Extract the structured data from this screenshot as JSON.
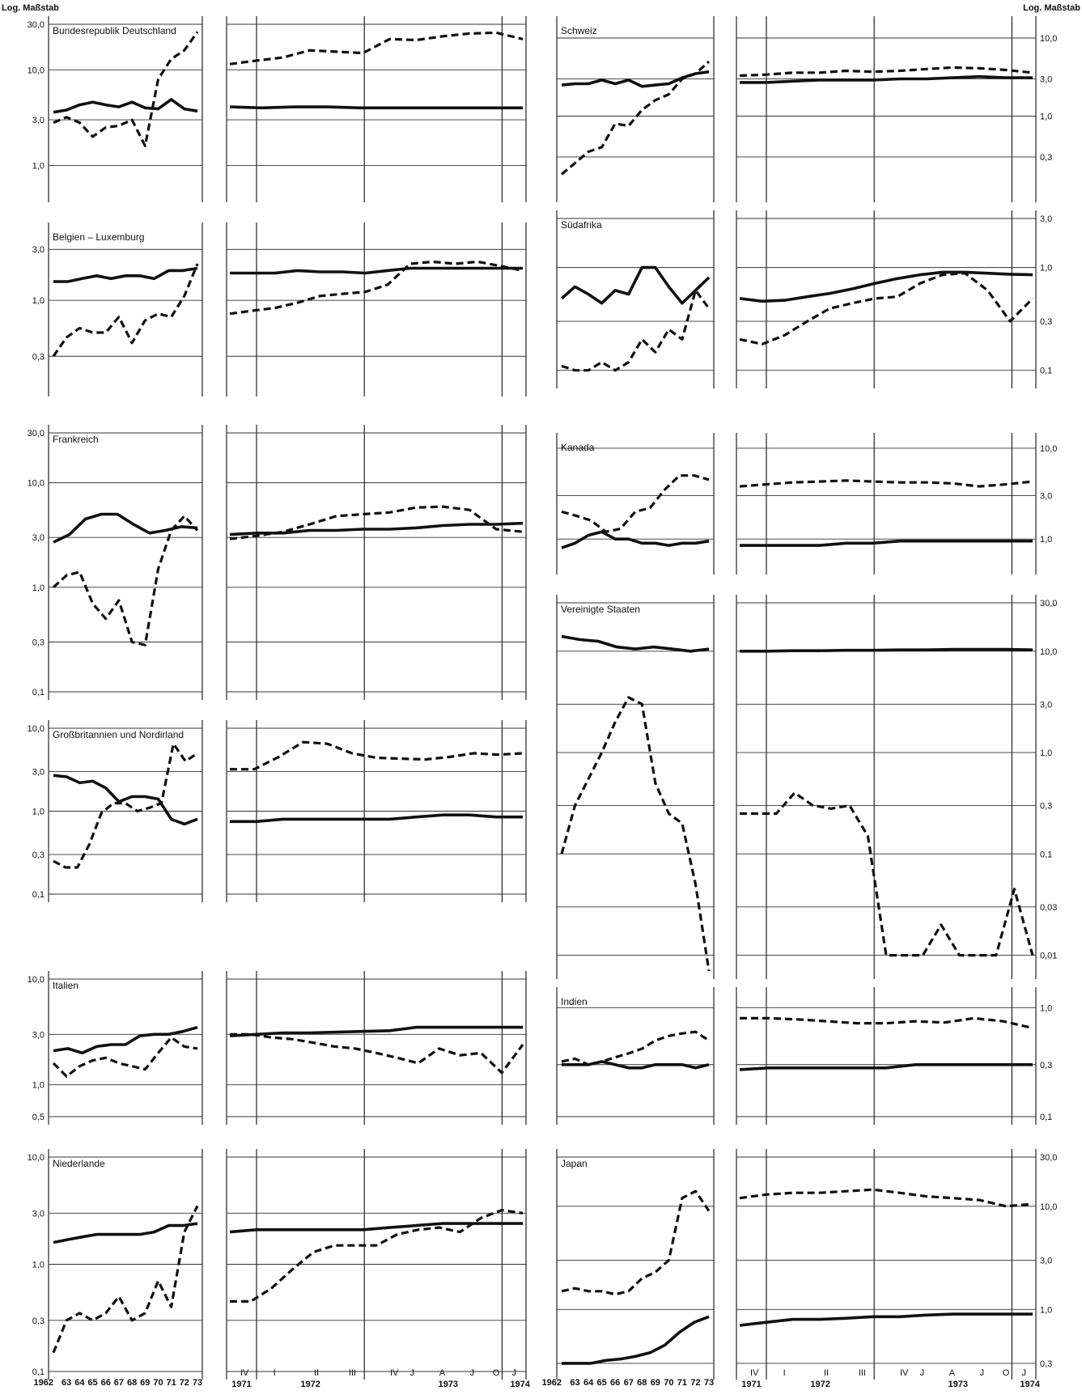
{
  "scale_label": "Log. Maßstab",
  "chart_data": [
    {
      "type": "line",
      "title": "Bundesrepublik Deutschland",
      "ticks": [
        "30,0",
        "10,0",
        "3,0",
        "1,0"
      ],
      "tick_values": [
        30,
        10,
        3,
        1
      ],
      "ylim": [
        0.5,
        30
      ],
      "annual": {
        "solid": [
          3.6,
          3.8,
          4.3,
          4.6,
          4.3,
          4.1,
          4.6,
          4.0,
          3.9,
          4.9,
          3.9,
          3.7
        ],
        "dashed": [
          2.8,
          3.2,
          2.8,
          2.0,
          2.5,
          2.6,
          3.0,
          1.6,
          8.0,
          13.0,
          16.0,
          25.0
        ]
      },
      "monthly": {
        "solid": [
          4.1,
          4.0,
          4.1,
          4.1,
          4.0,
          4.0,
          4.0,
          4.0,
          4.0,
          4.0
        ],
        "dashed": [
          11.5,
          12.5,
          13.5,
          16.0,
          15.5,
          15.0,
          21.0,
          20.5,
          22.5,
          24.0,
          24.5,
          21.0
        ]
      }
    },
    {
      "type": "line",
      "title": "Belgien – Luxemburg",
      "ticks": [
        "3,0",
        "1,0",
        "0,3"
      ],
      "tick_values": [
        3,
        1,
        0.3
      ],
      "ylim": [
        0.15,
        4.5
      ],
      "annual": {
        "solid": [
          1.5,
          1.5,
          1.6,
          1.7,
          1.6,
          1.7,
          1.7,
          1.6,
          1.9,
          1.9,
          2.0
        ],
        "dashed": [
          0.3,
          0.45,
          0.55,
          0.5,
          0.5,
          0.7,
          0.4,
          0.65,
          0.75,
          0.7,
          1.1,
          2.2
        ]
      },
      "monthly": {
        "solid": [
          1.8,
          1.8,
          1.8,
          1.9,
          1.85,
          1.85,
          1.8,
          1.9,
          2.0,
          2.0,
          2.0,
          2.0,
          2.0,
          2.0
        ],
        "dashed": [
          0.75,
          0.8,
          0.85,
          0.95,
          1.1,
          1.15,
          1.2,
          1.4,
          2.2,
          2.3,
          2.2,
          2.3,
          2.1,
          1.9
        ]
      }
    },
    {
      "type": "line",
      "title": "Frankreich",
      "ticks": [
        "30,0",
        "10,0",
        "3,0",
        "1,0",
        "0,3",
        "0,1"
      ],
      "tick_values": [
        30,
        10,
        3,
        1,
        0.3,
        0.1
      ],
      "ylim": [
        0.1,
        30
      ],
      "annual": {
        "solid": [
          2.7,
          3.2,
          4.5,
          5.0,
          5.0,
          4.0,
          3.3,
          3.5,
          3.8,
          3.7
        ],
        "dashed": [
          1.0,
          1.3,
          1.4,
          0.7,
          0.5,
          0.75,
          0.3,
          0.28,
          1.5,
          3.5,
          4.8,
          3.5
        ]
      },
      "monthly": {
        "solid": [
          3.2,
          3.3,
          3.3,
          3.5,
          3.5,
          3.6,
          3.6,
          3.7,
          3.9,
          4.0,
          4.0,
          4.1
        ],
        "dashed": [
          2.9,
          3.1,
          3.4,
          4.0,
          4.8,
          5.0,
          5.2,
          5.8,
          5.9,
          5.5,
          3.6,
          3.4
        ]
      }
    },
    {
      "type": "line",
      "title": "Großbritannien und Nordirland",
      "ticks": [
        "10,0",
        "3,0",
        "1,0",
        "0,3",
        "0,1"
      ],
      "tick_values": [
        10,
        3,
        1,
        0.3,
        0.1
      ],
      "ylim": [
        0.1,
        10
      ],
      "annual": {
        "solid": [
          2.7,
          2.6,
          2.2,
          2.3,
          1.9,
          1.3,
          1.5,
          1.5,
          1.4,
          0.8,
          0.7,
          0.8
        ],
        "dashed": [
          0.25,
          0.21,
          0.21,
          0.4,
          0.95,
          1.25,
          1.25,
          1.0,
          1.1,
          1.25,
          6.5,
          4.0,
          5.0
        ]
      },
      "monthly": {
        "solid": [
          0.75,
          0.75,
          0.8,
          0.8,
          0.8,
          0.8,
          0.8,
          0.85,
          0.9,
          0.9,
          0.85,
          0.85
        ],
        "dashed": [
          3.2,
          3.2,
          4.5,
          6.8,
          6.5,
          5.0,
          4.4,
          4.3,
          4.2,
          4.5,
          5.0,
          4.8,
          5.0
        ]
      }
    },
    {
      "type": "line",
      "title": "Italien",
      "ticks": [
        "10,0",
        "3,0",
        "1,0",
        "0,5"
      ],
      "tick_values": [
        10,
        3,
        1,
        0.5
      ],
      "ylim": [
        0.5,
        10
      ],
      "annual": {
        "solid": [
          2.1,
          2.2,
          2.0,
          2.3,
          2.4,
          2.4,
          2.9,
          3.0,
          3.0,
          3.2,
          3.5
        ],
        "dashed": [
          1.6,
          1.2,
          1.5,
          1.7,
          1.8,
          1.6,
          1.5,
          1.4,
          2.0,
          2.8,
          2.3,
          2.2
        ]
      },
      "monthly": {
        "solid": [
          2.9,
          3.0,
          3.1,
          3.1,
          3.15,
          3.2,
          3.25,
          3.5,
          3.5,
          3.5,
          3.5,
          3.5
        ],
        "dashed": [
          3.0,
          3.0,
          2.8,
          2.7,
          2.5,
          2.3,
          2.2,
          2.0,
          1.8,
          1.6,
          2.2,
          1.9,
          2.0,
          1.3,
          2.4
        ]
      }
    },
    {
      "type": "line",
      "title": "Niederlande",
      "ticks": [
        "10,0",
        "3,0",
        "1,0",
        "0,3",
        "0,1"
      ],
      "tick_values": [
        10,
        3,
        1,
        0.3,
        0.1
      ],
      "ylim": [
        0.1,
        10
      ],
      "annual": {
        "solid": [
          1.6,
          1.7,
          1.8,
          1.9,
          1.9,
          1.9,
          1.9,
          2.0,
          2.3,
          2.3,
          2.4
        ],
        "dashed": [
          0.15,
          0.3,
          0.35,
          0.3,
          0.35,
          0.5,
          0.3,
          0.35,
          0.7,
          0.4,
          2.0,
          3.5
        ]
      },
      "monthly": {
        "solid": [
          2.0,
          2.1,
          2.1,
          2.1,
          2.1,
          2.1,
          2.2,
          2.3,
          2.4,
          2.4,
          2.4,
          2.4
        ],
        "dashed": [
          0.45,
          0.45,
          0.6,
          0.9,
          1.3,
          1.5,
          1.5,
          1.5,
          1.9,
          2.1,
          2.2,
          2.0,
          2.7,
          3.2,
          3.0
        ]
      }
    },
    {
      "type": "line",
      "title": "Schweiz",
      "ticks": [
        "10,0",
        "3,0",
        "1,0",
        "0,3"
      ],
      "tick_values": [
        10,
        3,
        1,
        0.3
      ],
      "ylim": [
        0.1,
        15
      ],
      "annual": {
        "solid": [
          2.5,
          2.6,
          2.6,
          2.9,
          2.6,
          2.9,
          2.4,
          2.5,
          2.6,
          3.1,
          3.5,
          3.7
        ],
        "dashed": [
          0.18,
          0.25,
          0.35,
          0.4,
          0.8,
          0.75,
          1.2,
          1.6,
          1.9,
          3.0,
          3.5,
          5.0
        ]
      },
      "monthly": {
        "solid": [
          2.7,
          2.7,
          2.8,
          2.9,
          2.9,
          2.9,
          3.0,
          3.0,
          3.1,
          3.2,
          3.1,
          3.1
        ],
        "dashed": [
          3.3,
          3.4,
          3.6,
          3.6,
          3.8,
          3.7,
          3.8,
          4.0,
          4.2,
          4.1,
          3.9,
          3.6
        ]
      }
    },
    {
      "type": "line",
      "title": "Südafrika",
      "ticks": [
        "3,0",
        "1,0",
        "0,3",
        "0,1"
      ],
      "tick_values": [
        3,
        1,
        0.3,
        0.1
      ],
      "ylim": [
        0.08,
        3
      ],
      "annual": {
        "solid": [
          0.5,
          0.65,
          0.55,
          0.45,
          0.6,
          0.55,
          1.0,
          1.0,
          0.65,
          0.45,
          0.6,
          0.8
        ],
        "dashed": [
          0.11,
          0.1,
          0.1,
          0.12,
          0.1,
          0.12,
          0.2,
          0.15,
          0.25,
          0.2,
          0.6,
          0.4
        ]
      },
      "monthly": {
        "solid": [
          0.5,
          0.47,
          0.48,
          0.52,
          0.56,
          0.62,
          0.7,
          0.78,
          0.85,
          0.9,
          0.9,
          0.88,
          0.86,
          0.85
        ],
        "dashed": [
          0.2,
          0.18,
          0.22,
          0.3,
          0.4,
          0.45,
          0.5,
          0.52,
          0.7,
          0.85,
          0.88,
          0.6,
          0.3,
          0.5
        ]
      }
    },
    {
      "type": "line",
      "title": "Kanada",
      "ticks": [
        "10,0",
        "3,0",
        "1,0"
      ],
      "tick_values": [
        10,
        3,
        1
      ],
      "ylim": [
        0.5,
        12
      ],
      "annual": {
        "solid": [
          0.8,
          0.9,
          1.1,
          1.2,
          1.0,
          1.0,
          0.9,
          0.9,
          0.85,
          0.9,
          0.9,
          0.95
        ],
        "dashed": [
          2.0,
          1.8,
          1.6,
          1.2,
          1.3,
          2.0,
          2.2,
          3.5,
          5.0,
          5.0,
          4.5
        ]
      },
      "monthly": {
        "solid": [
          0.85,
          0.85,
          0.85,
          0.85,
          0.9,
          0.9,
          0.95,
          0.95,
          0.95,
          0.95,
          0.95,
          0.95
        ],
        "dashed": [
          3.8,
          4.0,
          4.2,
          4.3,
          4.4,
          4.3,
          4.2,
          4.2,
          4.1,
          3.8,
          4.0,
          4.3
        ]
      }
    },
    {
      "type": "line",
      "title": "Vereinigte Staaten",
      "ticks": [
        "30,0",
        "10,0",
        "3,0",
        "1,0",
        "0,3",
        "0,1",
        "0,03",
        "0,01"
      ],
      "tick_values": [
        30,
        10,
        3,
        1,
        0.3,
        0.1,
        0.03,
        0.01
      ],
      "ylim": [
        0.007,
        30
      ],
      "annual": {
        "solid": [
          14.0,
          13.0,
          12.5,
          11.0,
          10.5,
          11.0,
          10.5,
          10.0,
          10.5
        ],
        "dashed": [
          0.1,
          0.3,
          0.55,
          1.0,
          2.0,
          3.5,
          3.0,
          0.5,
          0.25,
          0.2,
          0.05,
          0.007
        ]
      },
      "monthly": {
        "solid": [
          10.0,
          10.0,
          10.1,
          10.1,
          10.2,
          10.2,
          10.3,
          10.3,
          10.4,
          10.4,
          10.4,
          10.3
        ],
        "dashed": [
          0.25,
          0.25,
          0.25,
          0.4,
          0.3,
          0.28,
          0.3,
          0.15,
          0.01,
          0.01,
          0.01,
          0.02,
          0.01,
          0.01,
          0.01,
          0.045,
          0.01
        ]
      }
    },
    {
      "type": "line",
      "title": "Indien",
      "ticks": [
        "1,0",
        "0,3",
        "0,1"
      ],
      "tick_values": [
        1,
        0.3,
        0.1
      ],
      "ylim": [
        0.1,
        1.3
      ],
      "annual": {
        "solid": [
          0.3,
          0.3,
          0.3,
          0.32,
          0.3,
          0.28,
          0.28,
          0.3,
          0.3,
          0.3,
          0.28,
          0.3
        ],
        "dashed": [
          0.32,
          0.34,
          0.3,
          0.32,
          0.35,
          0.38,
          0.42,
          0.5,
          0.55,
          0.58,
          0.6,
          0.5
        ]
      },
      "monthly": {
        "solid": [
          0.27,
          0.28,
          0.28,
          0.28,
          0.28,
          0.28,
          0.3,
          0.3,
          0.3,
          0.3,
          0.3
        ],
        "dashed": [
          0.8,
          0.8,
          0.78,
          0.75,
          0.72,
          0.72,
          0.75,
          0.73,
          0.8,
          0.75,
          0.65
        ]
      }
    },
    {
      "type": "line",
      "title": "Japan",
      "ticks": [
        "30,0",
        "10,0",
        "3,0",
        "1,0",
        "0,3"
      ],
      "tick_values": [
        30,
        10,
        3,
        1,
        0.3
      ],
      "ylim": [
        0.25,
        30
      ],
      "annual": {
        "solid": [
          0.3,
          0.3,
          0.3,
          0.32,
          0.33,
          0.35,
          0.38,
          0.45,
          0.6,
          0.75,
          0.85
        ],
        "dashed": [
          1.5,
          1.6,
          1.5,
          1.5,
          1.4,
          1.5,
          2.0,
          2.3,
          3.0,
          12.0,
          14.0,
          9.0
        ]
      },
      "monthly": {
        "solid": [
          0.7,
          0.75,
          0.8,
          0.8,
          0.82,
          0.85,
          0.85,
          0.88,
          0.9,
          0.9,
          0.9,
          0.9
        ],
        "dashed": [
          12.0,
          13.0,
          13.5,
          13.5,
          14.0,
          14.5,
          13.5,
          12.5,
          12.0,
          11.5,
          10.0,
          10.5
        ]
      }
    }
  ],
  "left_annual_axis": {
    "ticks": [
      "1962",
      "63",
      "64",
      "65",
      "66",
      "67",
      "68",
      "69",
      "70",
      "71",
      "72",
      "73"
    ]
  },
  "right_annual_axis": {
    "ticks": [
      "1962",
      "63",
      "64",
      "65",
      "66",
      "67",
      "68",
      "69",
      "70",
      "71",
      "72",
      "73"
    ]
  },
  "left_monthly_axis": {
    "quarter_ticks": [
      "IV",
      "I",
      "II",
      "III",
      "IV",
      "J",
      "A",
      "J",
      "O",
      "J"
    ],
    "years": [
      "1971",
      "1972",
      "1973",
      "1974"
    ]
  },
  "right_monthly_axis": {
    "quarter_ticks": [
      "IV",
      "I",
      "II",
      "III",
      "IV",
      "J",
      "A",
      "J",
      "O",
      "J"
    ],
    "years": [
      "1971",
      "1972",
      "1973",
      "1974"
    ]
  }
}
